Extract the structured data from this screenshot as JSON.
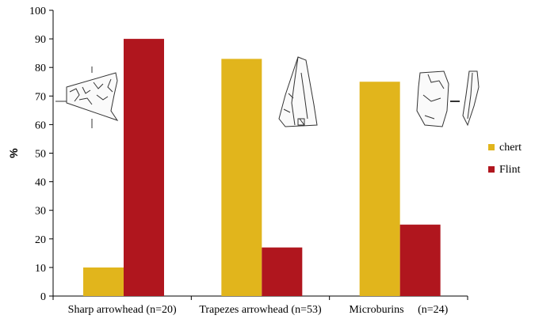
{
  "chart_data": {
    "type": "bar",
    "title": "",
    "xlabel": "",
    "ylabel": "%",
    "ylim": [
      0,
      100
    ],
    "yticks": [
      0,
      10,
      20,
      30,
      40,
      50,
      60,
      70,
      80,
      90,
      100
    ],
    "categories": [
      "Sharp arrowhead (n=20)",
      "Trapezes arrowhead (n=53)",
      "Microburins     (n=24)"
    ],
    "series": [
      {
        "name": "chert",
        "color": "#e1b51c",
        "values": [
          10,
          83,
          75
        ]
      },
      {
        "name": "Flint",
        "color": "#b0161e",
        "values": [
          90,
          17,
          25
        ]
      }
    ],
    "legend": "right",
    "grid": false
  }
}
